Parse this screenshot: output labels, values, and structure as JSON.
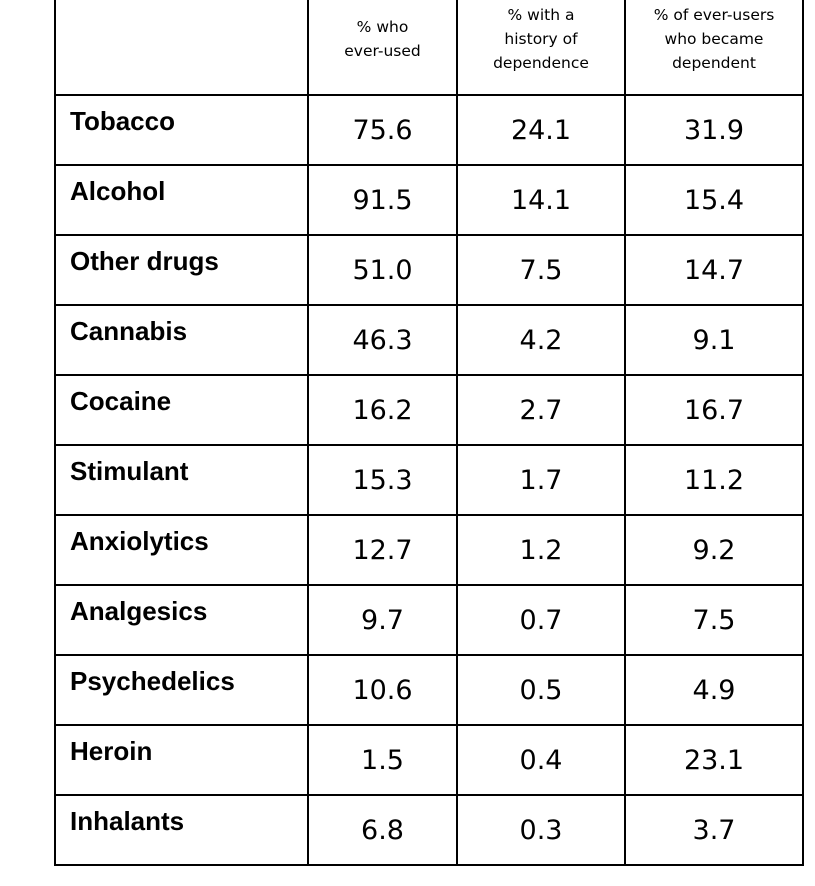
{
  "chart_data": {
    "type": "table",
    "columns": [
      "",
      "% who ever-used",
      "% with a history of dependence",
      "% of ever-users who became dependent"
    ],
    "rows": [
      {
        "label": "Tobacco",
        "values": [
          "75.6",
          "24.1",
          "31.9"
        ]
      },
      {
        "label": "Alcohol",
        "values": [
          "91.5",
          "14.1",
          "15.4"
        ]
      },
      {
        "label": "Other drugs",
        "values": [
          "51.0",
          "7.5",
          "14.7"
        ]
      },
      {
        "label": "Cannabis",
        "values": [
          "46.3",
          "4.2",
          "9.1"
        ]
      },
      {
        "label": "Cocaine",
        "values": [
          "16.2",
          "2.7",
          "16.7"
        ]
      },
      {
        "label": "Stimulant",
        "values": [
          "15.3",
          "1.7",
          "11.2"
        ]
      },
      {
        "label": "Anxiolytics",
        "values": [
          "12.7",
          "1.2",
          "9.2"
        ]
      },
      {
        "label": "Analgesics",
        "values": [
          "9.7",
          "0.7",
          "7.5"
        ]
      },
      {
        "label": "Psychedelics",
        "values": [
          "10.6",
          "0.5",
          "4.9"
        ]
      },
      {
        "label": "Heroin",
        "values": [
          "1.5",
          "0.4",
          "23.1"
        ]
      },
      {
        "label": "Inhalants",
        "values": [
          "6.8",
          "0.3",
          "3.7"
        ]
      }
    ]
  }
}
